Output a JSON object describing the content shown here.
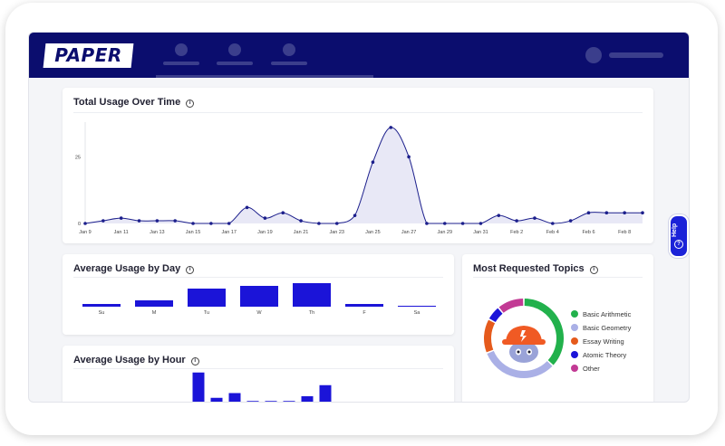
{
  "header": {
    "logo_text": "PAPER"
  },
  "usage_over_time": {
    "title": "Total Usage Over Time",
    "chart_data": {
      "type": "area",
      "title": "Total Usage Over Time",
      "y_ticks": [
        "0",
        "25"
      ],
      "ylim": [
        0,
        38
      ],
      "x_labels": [
        "Jan 9",
        "Jan 11",
        "Jan 13",
        "Jan 15",
        "Jan 17",
        "Jan 19",
        "Jan 21",
        "Jan 23",
        "Jan 25",
        "Jan 27",
        "Jan 29",
        "Jan 31",
        "Feb 2",
        "Feb 4",
        "Feb 6",
        "Feb 8"
      ],
      "x": [
        "Jan 9",
        "Jan 10",
        "Jan 11",
        "Jan 12",
        "Jan 13",
        "Jan 14",
        "Jan 15",
        "Jan 16",
        "Jan 17",
        "Jan 18",
        "Jan 19",
        "Jan 20",
        "Jan 21",
        "Jan 22",
        "Jan 23",
        "Jan 24",
        "Jan 25",
        "Jan 26",
        "Jan 27",
        "Jan 28",
        "Jan 29",
        "Jan 30",
        "Jan 31",
        "Feb 1",
        "Feb 2",
        "Feb 3",
        "Feb 4",
        "Feb 5",
        "Feb 6",
        "Feb 7",
        "Feb 8",
        "Feb 9"
      ],
      "values": [
        0,
        1,
        2,
        1,
        1,
        1,
        0,
        0,
        0,
        6,
        2,
        4,
        1,
        0,
        0,
        3,
        23,
        36,
        25,
        0,
        0,
        0,
        0,
        3,
        1,
        2,
        0,
        1,
        4,
        4,
        4,
        4
      ],
      "grid": false,
      "color": "#1c1f8c",
      "fill": "#e8e8f6"
    }
  },
  "usage_by_day": {
    "title": "Average Usage by Day",
    "chart_data": {
      "type": "bar",
      "categories": [
        "Su",
        "M",
        "Tu",
        "W",
        "Th",
        "F",
        "Sa"
      ],
      "values": [
        3,
        7,
        20,
        23,
        26,
        3,
        1
      ],
      "ylim": [
        0,
        28
      ],
      "color": "#1b14d8"
    }
  },
  "usage_by_hour": {
    "title": "Average Usage by Hour",
    "chart_data": {
      "type": "bar",
      "categories": [
        "",
        "",
        "",
        "",
        "",
        "",
        "",
        "",
        ""
      ],
      "values": [
        19,
        3,
        6,
        1,
        1,
        1,
        4,
        11,
        0
      ],
      "ylim": [
        0,
        20
      ],
      "color": "#1b14d8"
    }
  },
  "topics": {
    "title": "Most Requested Topics",
    "chart_data": {
      "type": "pie",
      "labels": [
        "Basic Arithmetic",
        "Basic Geometry",
        "Essay Writing",
        "Atomic Theory",
        "Other"
      ],
      "values": [
        37,
        32,
        14,
        6,
        11
      ],
      "colors": [
        "#22b14c",
        "#aab0e6",
        "#e55a1c",
        "#1b14d8",
        "#c23a94"
      ]
    }
  },
  "help": {
    "label": "Help",
    "icon": "?"
  }
}
